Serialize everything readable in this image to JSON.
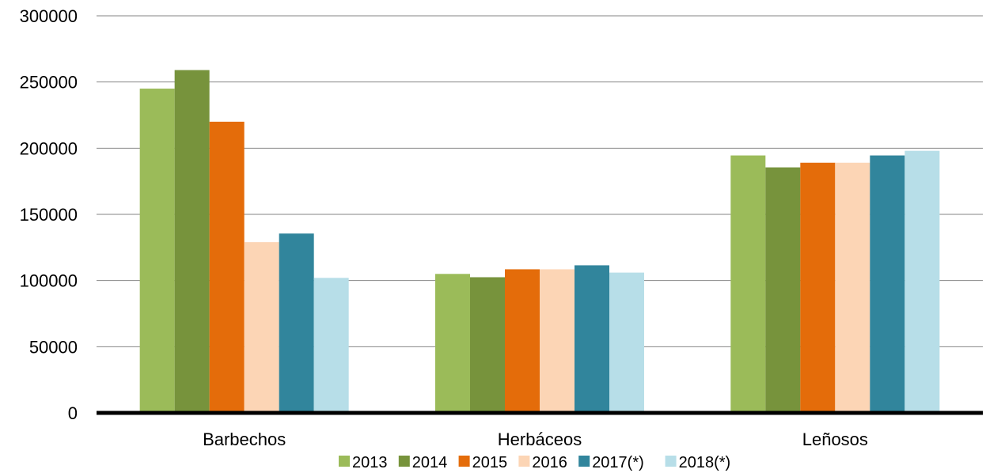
{
  "chart_data": {
    "type": "bar",
    "categories": [
      "Barbechos",
      "Herbáceos",
      "Leñosos"
    ],
    "series": [
      {
        "name": "2013",
        "color": "#9BBB59",
        "values": [
          245000,
          105000,
          194500
        ]
      },
      {
        "name": "2014",
        "color": "#77933C",
        "values": [
          259000,
          102500,
          185500
        ]
      },
      {
        "name": "2015",
        "color": "#E46C0A",
        "values": [
          220000,
          108500,
          189000
        ]
      },
      {
        "name": "2016",
        "color": "#FCD5B5",
        "values": [
          129000,
          108500,
          189000
        ]
      },
      {
        "name": "2017(*)",
        "color": "#31859C",
        "values": [
          135500,
          111500,
          194500
        ]
      },
      {
        "name": "2018(*)",
        "color": "#B7DEE8",
        "values": [
          102000,
          106000,
          198000
        ]
      }
    ],
    "ylim": [
      0,
      300000
    ],
    "yticks": [
      0,
      50000,
      100000,
      150000,
      200000,
      250000,
      300000
    ],
    "ytick_labels": [
      "0",
      "50000",
      "100000",
      "150000",
      "200000",
      "250000",
      "300000"
    ],
    "grid": true,
    "legend_position": "bottom",
    "title": "",
    "xlabel": "",
    "ylabel": ""
  }
}
